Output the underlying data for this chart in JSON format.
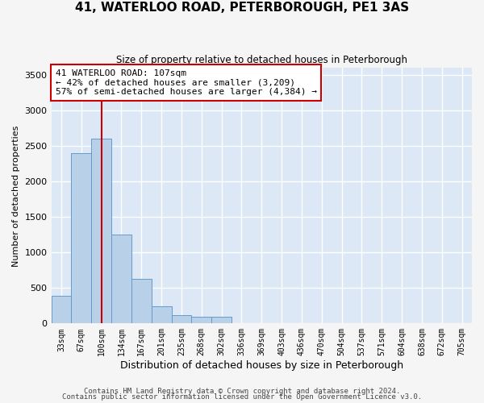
{
  "title": "41, WATERLOO ROAD, PETERBOROUGH, PE1 3AS",
  "subtitle": "Size of property relative to detached houses in Peterborough",
  "xlabel": "Distribution of detached houses by size in Peterborough",
  "ylabel": "Number of detached properties",
  "bar_labels": [
    "33sqm",
    "67sqm",
    "100sqm",
    "134sqm",
    "167sqm",
    "201sqm",
    "235sqm",
    "268sqm",
    "302sqm",
    "336sqm",
    "369sqm",
    "403sqm",
    "436sqm",
    "470sqm",
    "504sqm",
    "537sqm",
    "571sqm",
    "604sqm",
    "638sqm",
    "672sqm",
    "705sqm"
  ],
  "bar_values": [
    390,
    2400,
    2600,
    1250,
    630,
    240,
    115,
    100,
    95,
    0,
    0,
    0,
    0,
    0,
    0,
    0,
    0,
    0,
    0,
    0,
    0
  ],
  "bar_color": "#b8d0e8",
  "bar_edge_color": "#6699cc",
  "background_color": "#dce8f5",
  "grid_color": "#ffffff",
  "ylim": [
    0,
    3600
  ],
  "yticks": [
    0,
    500,
    1000,
    1500,
    2000,
    2500,
    3000,
    3500
  ],
  "property_line_x": 2.0,
  "property_line_color": "#cc0000",
  "annotation_text": "41 WATERLOO ROAD: 107sqm\n← 42% of detached houses are smaller (3,209)\n57% of semi-detached houses are larger (4,384) →",
  "annotation_box_facecolor": "#ffffff",
  "annotation_box_edgecolor": "#cc0000",
  "footer_line1": "Contains HM Land Registry data © Crown copyright and database right 2024.",
  "footer_line2": "Contains public sector information licensed under the Open Government Licence v3.0.",
  "fig_facecolor": "#f5f5f5"
}
